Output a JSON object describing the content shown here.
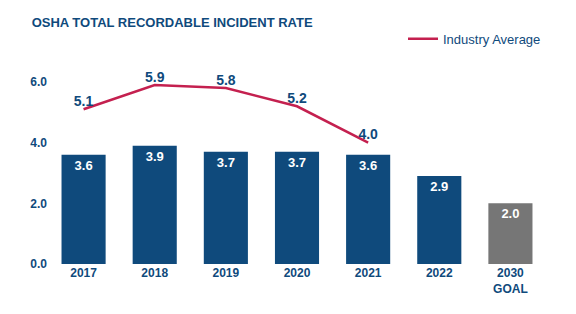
{
  "chart_data": {
    "type": "bar",
    "title": "OSHA TOTAL RECORDABLE INCIDENT RATE",
    "categories": [
      "2017",
      "2018",
      "2019",
      "2020",
      "2021",
      "2022",
      "2030 GOAL"
    ],
    "series": [
      {
        "type": "bar",
        "values": [
          3.6,
          3.9,
          3.7,
          3.7,
          3.6,
          2.9,
          2.0
        ],
        "value_labels": [
          "3.6",
          "3.9",
          "3.7",
          "3.7",
          "3.6",
          "2.9",
          "2.0"
        ],
        "colors": [
          "#0f4a7c",
          "#0f4a7c",
          "#0f4a7c",
          "#0f4a7c",
          "#0f4a7c",
          "#0f4a7c",
          "#767676"
        ]
      },
      {
        "type": "line",
        "name": "Industry Average",
        "color": "#c4204f",
        "values": [
          5.1,
          5.9,
          5.8,
          5.2,
          4.0,
          null,
          null
        ],
        "value_labels": [
          "5.1",
          "5.9",
          "5.8",
          "5.2",
          "4.0",
          null,
          null
        ]
      }
    ],
    "ylim": [
      0,
      6
    ],
    "yticks": [
      {
        "value": 0,
        "label": "0.0"
      },
      {
        "value": 2,
        "label": "2.0"
      },
      {
        "value": 4,
        "label": "4.0"
      },
      {
        "value": 6,
        "label": "6.0"
      }
    ],
    "grid": false,
    "data_labels": true,
    "legend": "top right"
  }
}
